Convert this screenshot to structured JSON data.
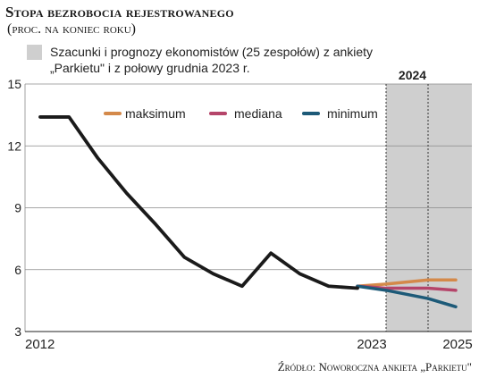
{
  "header": {
    "title": "Stopa bezrobocia rejestrowanego",
    "subtitle": "(proc. na koniec roku)"
  },
  "note": {
    "line1": "Szacunki i prognozy ekonomistów (25 zespołów) z ankiety",
    "line2": "„Parkietu\" i z połowy grudnia 2023 r.",
    "color": "#cfcfcf"
  },
  "source": "Źródło: Noworoczna ankieta „Parkietu\"",
  "chart_data": {
    "type": "line",
    "y_ticks": [
      "15",
      "12",
      "9",
      "6",
      "3"
    ],
    "ylim": [
      3,
      15
    ],
    "x_labels": {
      "start": "2012",
      "mid": "2023",
      "end": "2025"
    },
    "shaded_label": "2024",
    "x_range": [
      2012,
      2025
    ],
    "shaded_range": [
      2023.3,
      2025.4
    ],
    "grid": "horizontal",
    "legend_placement": "top-right",
    "series": [
      {
        "name": "",
        "color": "#1a1a1a",
        "x": [
          2012.0,
          2013.0,
          2014.0,
          2015.0,
          2016.0,
          2017.0,
          2018.0,
          2019.0,
          2020.0,
          2021.0,
          2022.0,
          2023.0
        ],
        "values": [
          13.4,
          13.4,
          11.4,
          9.7,
          8.2,
          6.6,
          5.8,
          5.2,
          6.8,
          5.8,
          5.2,
          5.1
        ]
      },
      {
        "name": "maksimum",
        "color": "#d4894a",
        "x": [
          2022.0,
          2023.0,
          2024.0,
          2025.0
        ],
        "values": [
          5.2,
          5.3,
          5.5,
          5.5
        ]
      },
      {
        "name": "mediana",
        "color": "#b5456a",
        "x": [
          2022.0,
          2023.0,
          2024.0,
          2025.0
        ],
        "values": [
          5.2,
          5.1,
          5.1,
          5.0
        ]
      },
      {
        "name": "minimum",
        "color": "#1d5a78",
        "x": [
          2022.0,
          2023.0,
          2024.0,
          2025.0
        ],
        "values": [
          5.2,
          5.0,
          4.6,
          4.2
        ]
      }
    ]
  }
}
